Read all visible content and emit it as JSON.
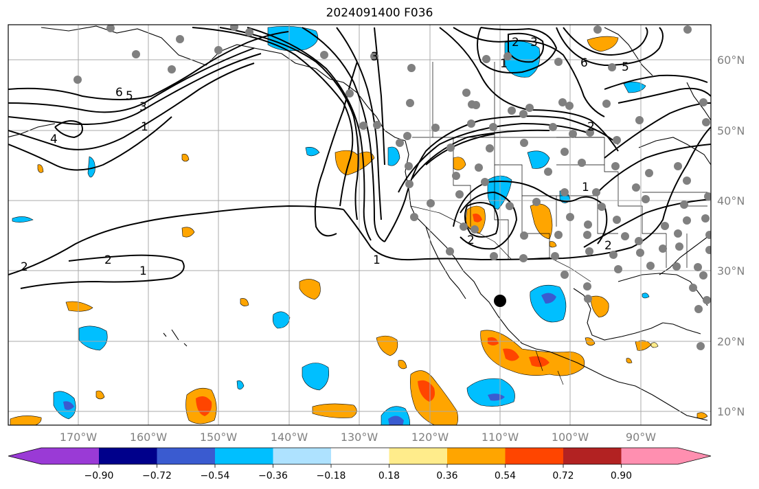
{
  "title": "2024091400 F036",
  "lat_labels": [
    "60°N",
    "50°N",
    "40°N",
    "30°N",
    "20°N",
    "10°N"
  ],
  "lon_labels": [
    "170°W",
    "160°W",
    "150°W",
    "140°W",
    "130°W",
    "120°W",
    "110°W",
    "100°W",
    "90°W"
  ],
  "colorbar": {
    "ticks": [
      "−0.90",
      "−0.72",
      "−0.54",
      "−0.36",
      "−0.18",
      "0.18",
      "0.36",
      "0.54",
      "0.72",
      "0.90"
    ],
    "colors": [
      "#9a3ad6",
      "#00008b",
      "#3a5bd0",
      "#00bfff",
      "#aee2ff",
      "#ffffff",
      "#ffec8b",
      "#ffa500",
      "#ff4500",
      "#b22222",
      "#ff8fb0"
    ]
  },
  "contour_labels": [
    "1",
    "2",
    "3",
    "4",
    "5",
    "6",
    "1",
    "2",
    "1",
    "2",
    "1",
    "2",
    "2",
    "3",
    "6",
    "5",
    "1",
    "3",
    "2"
  ],
  "colors": {
    "contour": "#000000",
    "stations": "#808080",
    "grid": "#a9a9a9",
    "coast": "#000000"
  }
}
